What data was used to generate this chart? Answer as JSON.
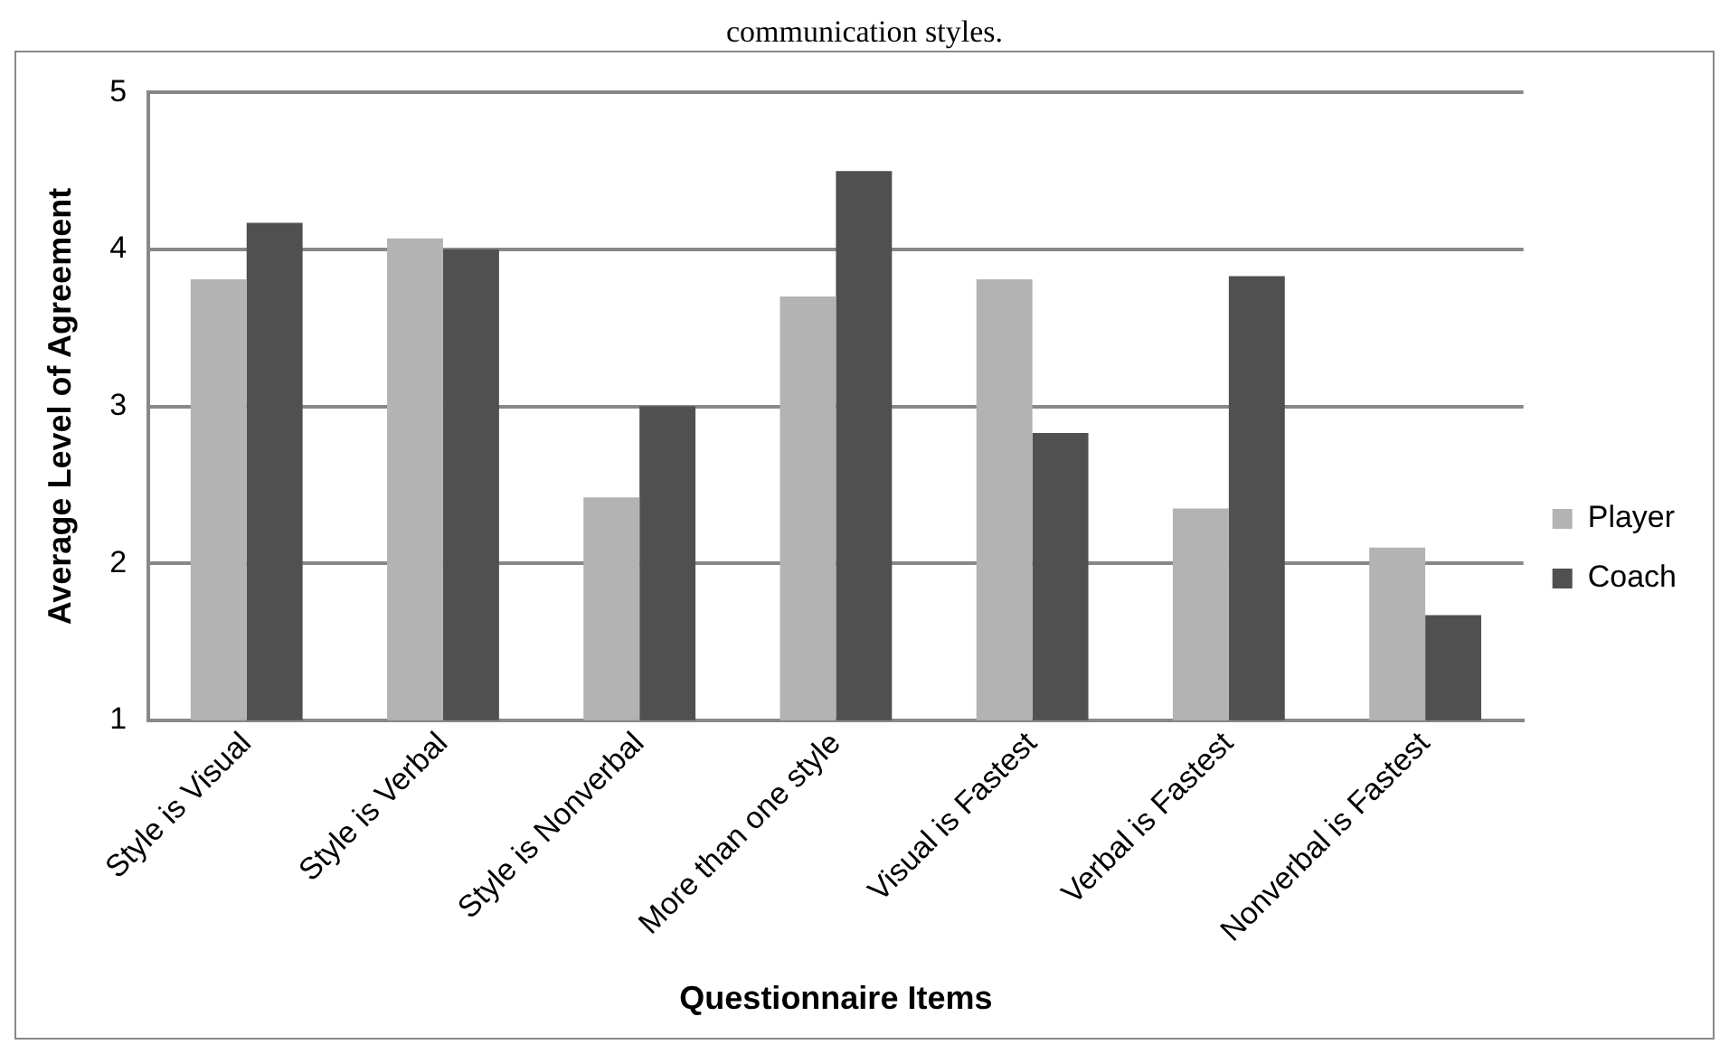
{
  "chart_data": {
    "type": "bar",
    "annotations": [
      "communication styles."
    ],
    "xlabel": "Questionnaire Items",
    "ylabel": "Average Level of Agreement",
    "categories": [
      "Style is Visual",
      "Style is Verbal",
      "Style is Nonverbal",
      "More than one style",
      "Visual is Fastest",
      "Verbal is Fastest",
      "Nonverbal is Fastest"
    ],
    "series": [
      {
        "name": "Player",
        "color": "#b3b3b3",
        "values": [
          3.81,
          4.07,
          2.42,
          3.7,
          3.81,
          2.35,
          2.1
        ]
      },
      {
        "name": "Coach",
        "color": "#505050",
        "values": [
          4.17,
          4.0,
          3.0,
          4.5,
          2.83,
          3.83,
          1.67
        ]
      }
    ],
    "ylim": [
      1,
      5
    ],
    "yticks": [
      1,
      2,
      3,
      4,
      5
    ],
    "grid": "y",
    "legend": "right"
  }
}
